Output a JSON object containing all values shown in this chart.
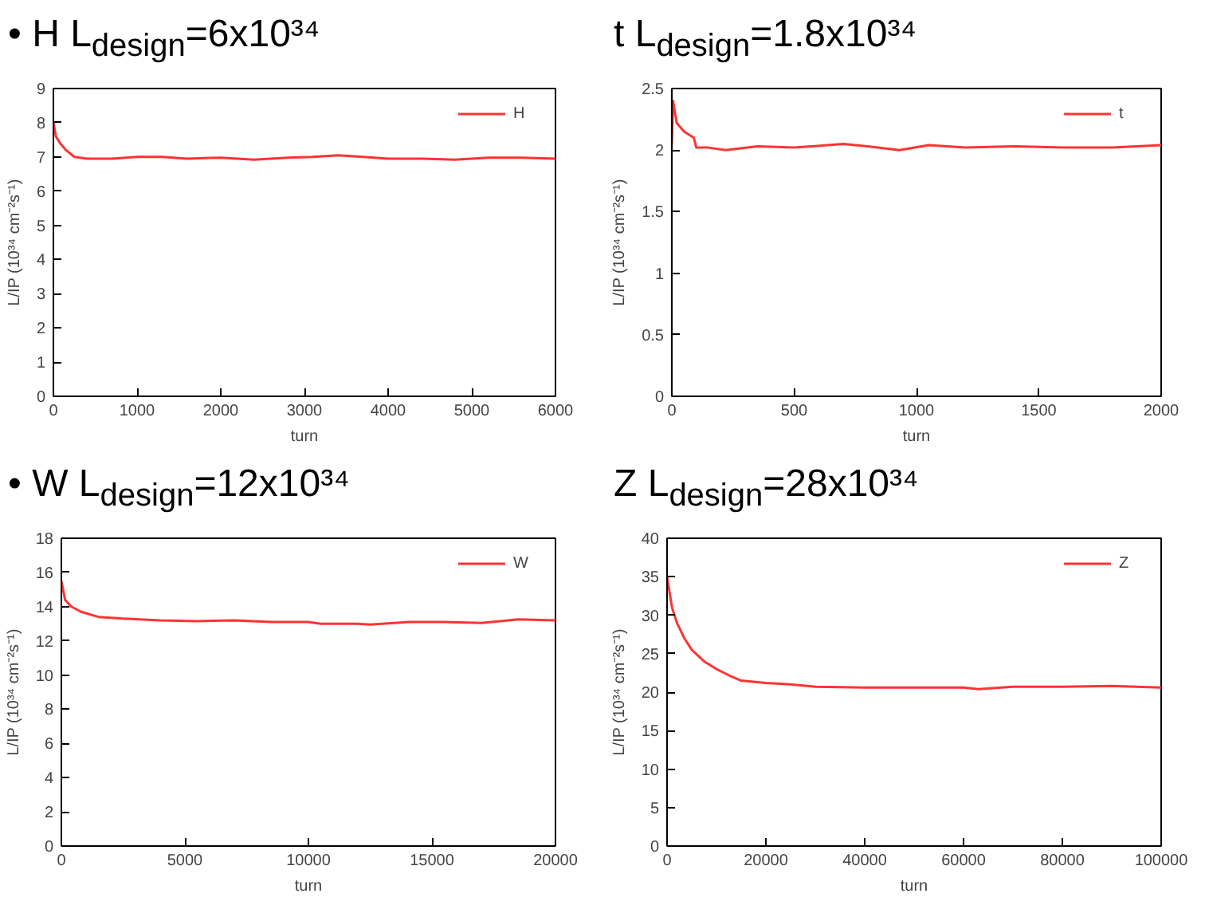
{
  "chart_data": [
    {
      "type": "line",
      "title": "• H   L$_{design}$=6x10³⁴",
      "xlabel": "turn",
      "ylabel": "L/IP (10³⁴ cm⁻²s⁻¹)",
      "xlim": [
        0,
        6000
      ],
      "xticks": [
        0,
        1000,
        2000,
        3000,
        4000,
        5000,
        6000
      ],
      "ylim": [
        0,
        9
      ],
      "yticks": [
        0,
        1,
        2,
        3,
        4,
        5,
        6,
        7,
        8,
        9
      ],
      "legend": "top right",
      "grid": false,
      "x": [
        0,
        30,
        80,
        150,
        250,
        400,
        700,
        1000,
        1300,
        1600,
        2000,
        2400,
        2800,
        3100,
        3400,
        3700,
        4000,
        4400,
        4800,
        5200,
        5600,
        6000
      ],
      "series": [
        {
          "name": "H",
          "color": "#ff3333",
          "values": [
            8.0,
            7.6,
            7.4,
            7.2,
            7.0,
            6.95,
            6.95,
            7.0,
            7.0,
            6.95,
            6.98,
            6.92,
            6.98,
            7.0,
            7.05,
            7.0,
            6.95,
            6.95,
            6.92,
            6.98,
            6.98,
            6.95
          ]
        }
      ]
    },
    {
      "type": "line",
      "title": "t  L$_{design}$=1.8x10³⁴",
      "xlabel": "turn",
      "ylabel": "L/IP (10³⁴ cm⁻²s⁻¹)",
      "xlim": [
        0,
        2000
      ],
      "xticks": [
        0,
        500,
        1000,
        1500,
        2000
      ],
      "ylim": [
        0,
        2.5
      ],
      "yticks": [
        0,
        0.5,
        1,
        1.5,
        2,
        2.5
      ],
      "legend": "top right",
      "grid": false,
      "x": [
        0,
        5,
        20,
        50,
        90,
        100,
        150,
        220,
        350,
        500,
        700,
        800,
        930,
        1050,
        1200,
        1400,
        1600,
        1800,
        2000
      ],
      "series": [
        {
          "name": "t",
          "color": "#ff3333",
          "values": [
            2.05,
            2.4,
            2.22,
            2.15,
            2.1,
            2.02,
            2.02,
            2.0,
            2.03,
            2.02,
            2.05,
            2.03,
            2.0,
            2.04,
            2.02,
            2.03,
            2.02,
            2.02,
            2.04
          ]
        }
      ]
    },
    {
      "type": "line",
      "title": "• W  L$_{design}$=12x10³⁴",
      "xlabel": "turn",
      "ylabel": "L/IP (10³⁴ cm⁻²s⁻¹)",
      "xlim": [
        0,
        20000
      ],
      "xticks": [
        0,
        5000,
        10000,
        15000,
        20000
      ],
      "ylim": [
        0,
        18
      ],
      "yticks": [
        0,
        2,
        4,
        6,
        8,
        10,
        12,
        14,
        16,
        18
      ],
      "legend": "top right",
      "grid": false,
      "x": [
        0,
        150,
        400,
        800,
        1500,
        2500,
        4000,
        5500,
        7000,
        8500,
        10000,
        10500,
        12000,
        12500,
        14000,
        15500,
        17000,
        18500,
        20000
      ],
      "series": [
        {
          "name": "W",
          "color": "#ff3333",
          "values": [
            15.5,
            14.4,
            14.0,
            13.7,
            13.4,
            13.3,
            13.2,
            13.15,
            13.2,
            13.1,
            13.1,
            13.0,
            13.0,
            12.95,
            13.1,
            13.1,
            13.05,
            13.25,
            13.2
          ]
        }
      ]
    },
    {
      "type": "line",
      "title": "Z  L$_{design}$=28x10³⁴",
      "xlabel": "turn",
      "ylabel": "L/IP (10³⁴ cm⁻²s⁻¹)",
      "xlim": [
        0,
        100000
      ],
      "xticks": [
        0,
        20000,
        40000,
        60000,
        80000,
        100000
      ],
      "ylim": [
        0,
        40
      ],
      "yticks": [
        0,
        5,
        10,
        15,
        20,
        25,
        30,
        35,
        40
      ],
      "legend": "top right",
      "grid": false,
      "x": [
        0,
        1000,
        2000,
        3500,
        5000,
        7500,
        10000,
        12500,
        15000,
        20000,
        25000,
        30000,
        40000,
        50000,
        60000,
        63000,
        70000,
        80000,
        90000,
        100000
      ],
      "series": [
        {
          "name": "Z",
          "color": "#ff3333",
          "values": [
            35,
            31,
            29,
            27,
            25.5,
            24,
            23,
            22.2,
            21.5,
            21.2,
            21.0,
            20.7,
            20.6,
            20.6,
            20.6,
            20.4,
            20.7,
            20.7,
            20.8,
            20.6
          ]
        }
      ]
    }
  ]
}
